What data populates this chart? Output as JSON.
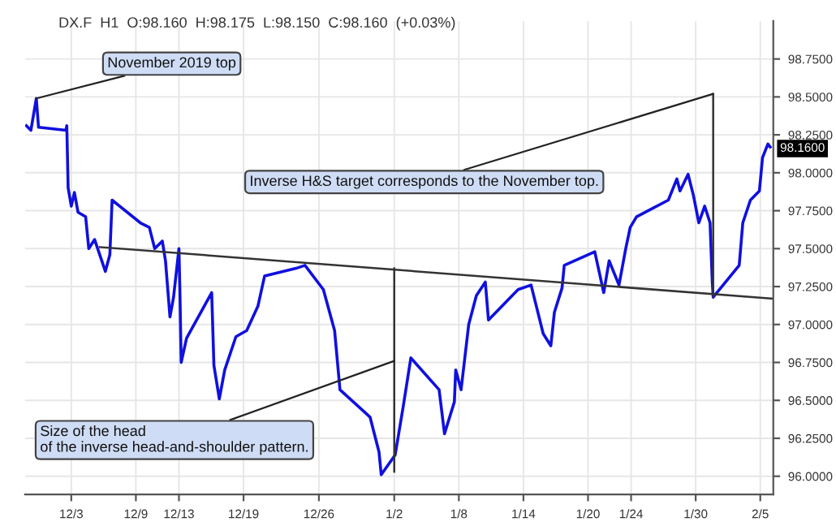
{
  "chart_data": {
    "type": "line",
    "title": "DX.F  H1  O:98.160  H:98.175  L:98.150  C:98.160  (+0.03%)",
    "xlim": [
      "2019-11-28T17:00",
      "2020-02-06T05:00"
    ],
    "ylim": [
      95.88,
      99.0
    ],
    "xticks": [
      {
        "value": "2019-12-03",
        "label": "12/3"
      },
      {
        "value": "2019-12-09",
        "label": "12/9"
      },
      {
        "value": "2019-12-13",
        "label": "12/13"
      },
      {
        "value": "2019-12-19",
        "label": "12/19"
      },
      {
        "value": "2019-12-26",
        "label": "12/26"
      },
      {
        "value": "2020-01-02",
        "label": "1/2"
      },
      {
        "value": "2020-01-08",
        "label": "1/8"
      },
      {
        "value": "2020-01-14",
        "label": "1/14"
      },
      {
        "value": "2020-01-20",
        "label": "1/20"
      },
      {
        "value": "2020-01-24",
        "label": "1/24"
      },
      {
        "value": "2020-01-30",
        "label": "1/30"
      },
      {
        "value": "2020-02-05",
        "label": "2/5"
      }
    ],
    "yticks": [
      {
        "value": 96.0,
        "label": "96.0000"
      },
      {
        "value": 96.25,
        "label": "96.2500"
      },
      {
        "value": 96.5,
        "label": "96.5000"
      },
      {
        "value": 96.75,
        "label": "96.7500"
      },
      {
        "value": 97.0,
        "label": "97.0000"
      },
      {
        "value": 97.25,
        "label": "97.2500"
      },
      {
        "value": 97.5,
        "label": "97.5000"
      },
      {
        "value": 97.75,
        "label": "97.7500"
      },
      {
        "value": 98.0,
        "label": "98.0000"
      },
      {
        "value": 98.25,
        "label": "98.2500"
      },
      {
        "value": 98.5,
        "label": "98.5000"
      },
      {
        "value": 98.75,
        "label": "98.7500"
      }
    ],
    "grid": true,
    "series": [
      {
        "color": "#1010e0",
        "x": [
          "2019-11-28T20:00",
          "2019-11-29T06:00",
          "2019-11-29T18:00",
          "2019-11-29T23:00",
          "2019-12-02T12:00",
          "2019-12-02T14:00",
          "2019-12-02T17:00",
          "2019-12-03T00:00",
          "2019-12-03T07:00",
          "2019-12-03T15:00",
          "2019-12-04T08:00",
          "2019-12-04T15:00",
          "2019-12-05T04:00",
          "2019-12-06T04:00",
          "2019-12-06T14:00",
          "2019-12-06T19:00",
          "2019-12-09T10:00",
          "2019-12-10T06:00",
          "2019-12-10T18:00",
          "2019-12-11T11:00",
          "2019-12-11T18:00",
          "2019-12-12T04:00",
          "2019-12-12T12:00",
          "2019-12-13T00:00",
          "2019-12-13T02:00",
          "2019-12-13T05:00",
          "2019-12-13T17:00",
          "2019-12-16T01:00",
          "2019-12-16T06:00",
          "2019-12-16T18:00",
          "2019-12-17T06:00",
          "2019-12-18T07:00",
          "2019-12-19T07:00",
          "2019-12-20T08:00",
          "2019-12-20T23:00",
          "2019-12-23T21:00",
          "2019-12-24T17:00",
          "2019-12-26T10:00",
          "2019-12-27T11:00",
          "2019-12-27T23:00",
          "2019-12-30T18:00",
          "2019-12-31T14:00",
          "2019-12-31T19:00",
          "2020-01-02T02:00",
          "2020-01-02T20:00",
          "2020-01-03T13:00",
          "2020-01-06T04:00",
          "2020-01-06T16:00",
          "2020-01-07T14:00",
          "2020-01-07T17:00",
          "2020-01-08T05:00",
          "2020-01-08T22:00",
          "2020-01-09T15:00",
          "2020-01-10T11:00",
          "2020-01-10T18:00",
          "2020-01-13T12:00",
          "2020-01-14T17:00",
          "2020-01-15T20:00",
          "2020-01-16T13:00",
          "2020-01-16T21:00",
          "2020-01-17T14:00",
          "2020-01-17T19:00",
          "2020-01-20T15:00",
          "2020-01-21T11:00",
          "2020-01-21T23:00",
          "2020-01-22T21:00",
          "2020-01-23T12:00",
          "2020-01-23T22:00",
          "2020-01-24T12:00",
          "2020-01-27T11:00",
          "2020-01-28T06:00",
          "2020-01-28T13:00",
          "2020-01-29T07:00",
          "2020-01-29T19:00",
          "2020-01-30T07:00",
          "2020-01-30T20:00",
          "2020-01-31T08:00",
          "2020-01-31T13:00",
          "2020-01-31T15:00",
          "2020-02-03T01:00",
          "2020-02-03T09:00",
          "2020-02-04T02:00",
          "2020-02-04T22:00",
          "2020-02-05T05:00",
          "2020-02-05T17:00",
          "2020-02-05T22:00"
        ],
        "values": [
          98.31,
          98.28,
          98.49,
          98.3,
          98.28,
          98.31,
          97.9,
          97.78,
          97.87,
          97.74,
          97.71,
          97.5,
          97.56,
          97.35,
          97.46,
          97.82,
          97.67,
          97.64,
          97.5,
          97.55,
          97.42,
          97.05,
          97.18,
          97.5,
          97.24,
          96.75,
          96.91,
          97.21,
          96.73,
          96.51,
          96.7,
          96.92,
          96.96,
          97.12,
          97.32,
          97.37,
          97.39,
          97.23,
          96.96,
          96.57,
          96.39,
          96.16,
          96.01,
          96.14,
          96.46,
          96.78,
          96.57,
          96.28,
          96.49,
          96.7,
          96.57,
          97.0,
          97.19,
          97.28,
          97.03,
          97.23,
          97.26,
          96.94,
          96.86,
          97.08,
          97.24,
          97.39,
          97.48,
          97.21,
          97.42,
          97.26,
          97.5,
          97.64,
          97.71,
          97.82,
          97.96,
          97.88,
          97.99,
          97.85,
          97.67,
          97.78,
          97.67,
          97.28,
          97.18,
          97.39,
          97.67,
          97.82,
          97.88,
          98.1,
          98.19,
          98.17
        ]
      },
      {
        "color": "#333333",
        "x": [
          "2019-12-05T16:00",
          "2020-02-06T05:00"
        ],
        "values": [
          97.51,
          97.17
        ]
      },
      {
        "color": "#333333",
        "x": [
          "2020-01-02T00:00",
          "2020-01-02T00:00"
        ],
        "values": [
          97.37,
          96.03
        ]
      },
      {
        "color": "#333333",
        "x": [
          "2020-01-31T15:00",
          "2020-01-31T15:00"
        ],
        "values": [
          98.52,
          97.18
        ]
      }
    ],
    "annotations": [
      {
        "text": "November 2019 top",
        "x": "2019-11-29T18:00",
        "y": 98.49
      },
      {
        "text": "Inverse H&S target corresponds to the November top.",
        "x": "2020-01-31T15:00",
        "y": 98.52
      },
      {
        "text": "Size of the head\nof the inverse head-and-shoulder pattern.",
        "x": "2020-01-02T00:00",
        "y": 96.76
      },
      {
        "text": "98.1600",
        "x": "2020-02-06T05:00",
        "y": 98.16
      }
    ]
  }
}
